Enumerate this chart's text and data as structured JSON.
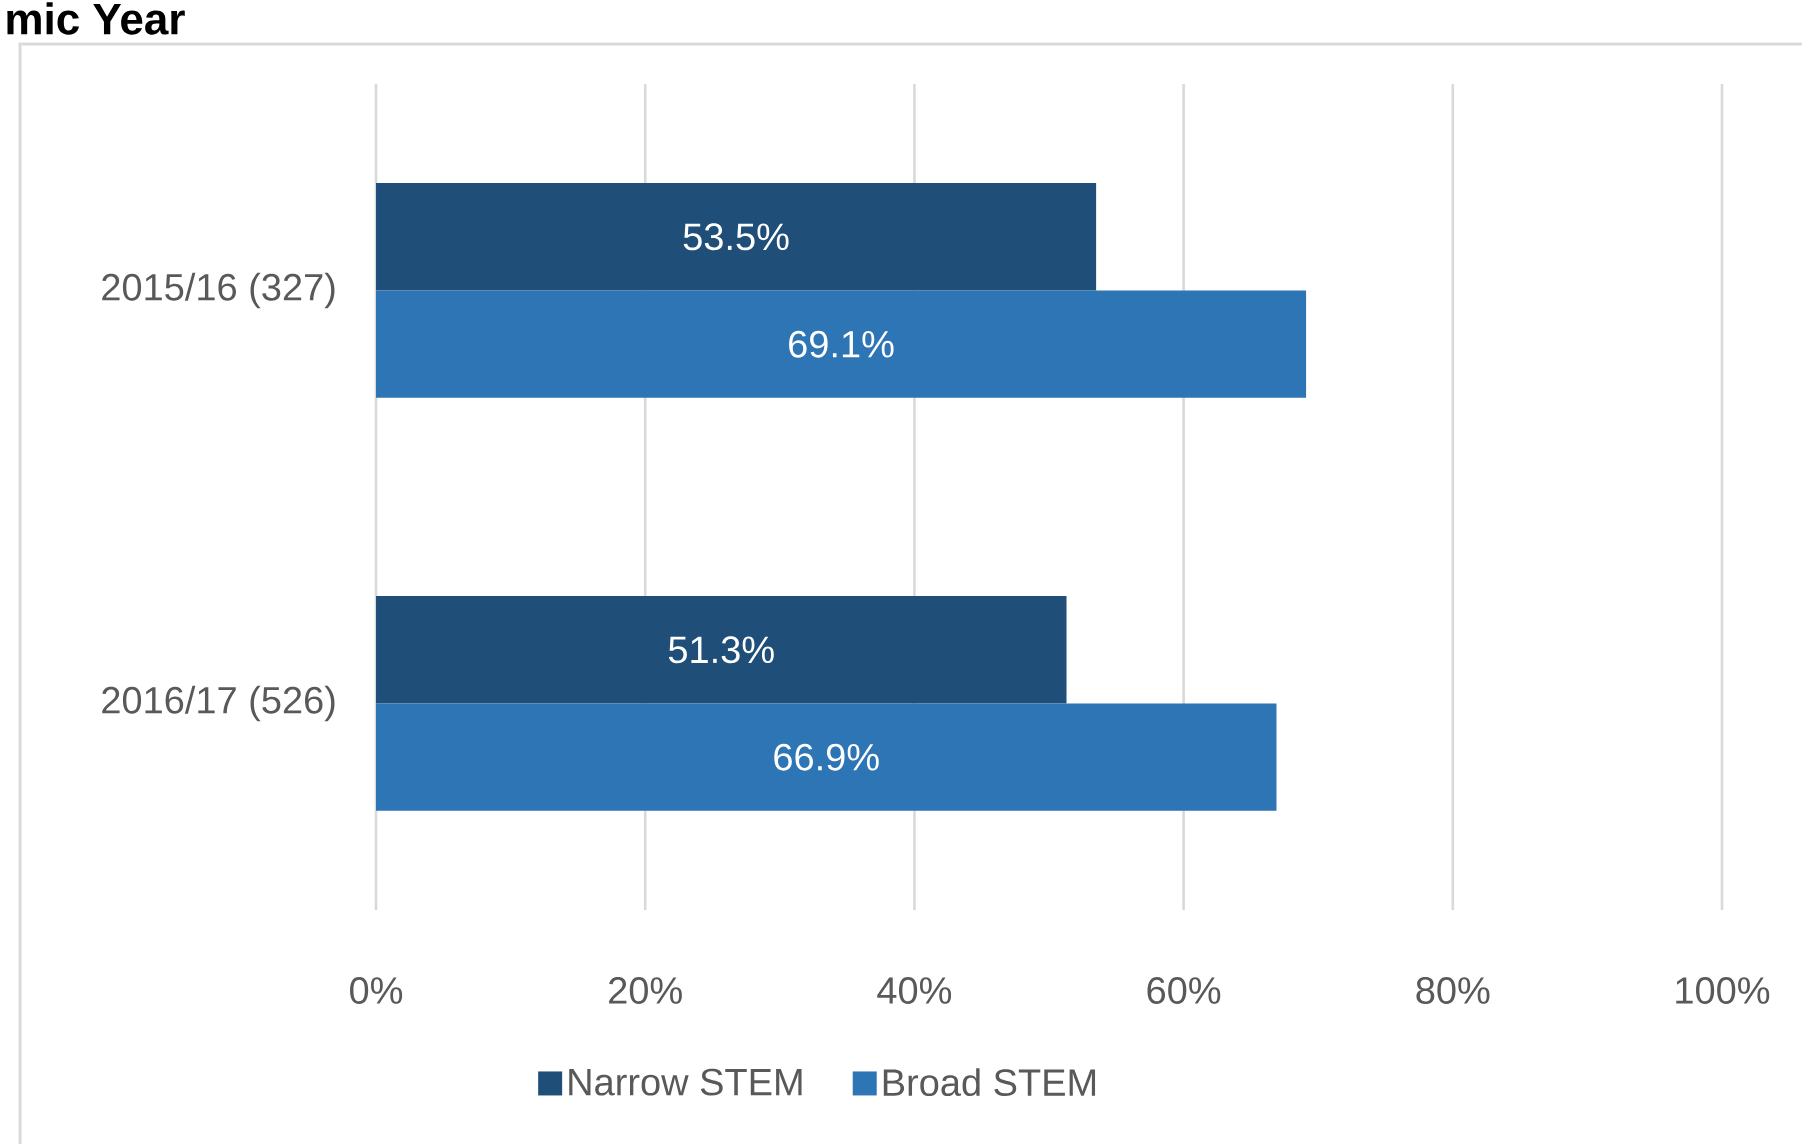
{
  "chart_data": {
    "type": "bar",
    "orientation": "horizontal",
    "title": "mic Year",
    "categories": [
      "2015/16 (327)",
      "2016/17 (526)"
    ],
    "series": [
      {
        "name": "Narrow STEM",
        "color": "#1f4e79",
        "values": [
          53.5,
          51.3
        ],
        "value_labels": [
          "53.5%",
          "51.3%"
        ]
      },
      {
        "name": "Broad STEM",
        "color": "#2e75b6",
        "values": [
          69.1,
          66.9
        ],
        "value_labels": [
          "69.1%",
          "66.9%"
        ]
      }
    ],
    "xlim": [
      0,
      100
    ],
    "xticks": [
      {
        "value": 0,
        "label": "0%"
      },
      {
        "value": 20,
        "label": "20%"
      },
      {
        "value": 40,
        "label": "40%"
      },
      {
        "value": 60,
        "label": "60%"
      },
      {
        "value": 80,
        "label": "80%"
      },
      {
        "value": 100,
        "label": "100%"
      }
    ],
    "grid": "x",
    "legend": "bottom"
  }
}
